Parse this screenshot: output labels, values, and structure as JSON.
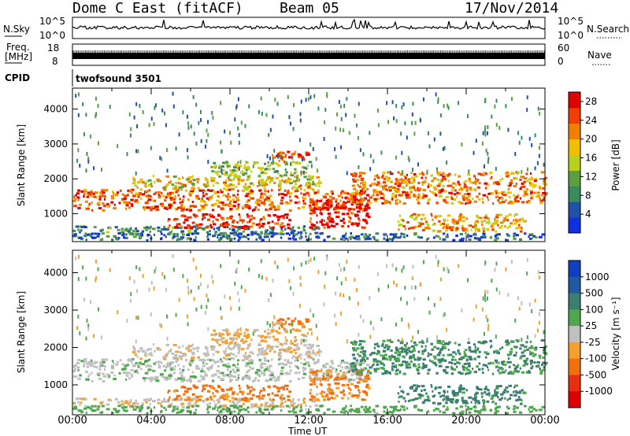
{
  "header": {
    "station": "Dome C East (fitACF)",
    "beam": "Beam 05",
    "date": "17/Nov/2014"
  },
  "strip_labels": {
    "nsky": "N.Sky",
    "nsky_ticks": [
      "10^5",
      "10^0"
    ],
    "nsearch": "N.Search",
    "freq_line1": "Freq.",
    "freq_line2": "[MHz]",
    "freq_ticks": [
      "18",
      "8"
    ],
    "nave": "Nave",
    "nave_ticks": [
      "60",
      "0"
    ],
    "cpid": "CPID",
    "cpid_name": "twofsound 3501"
  },
  "colors": {
    "power": [
      "#1030e0",
      "#2050a8",
      "#3a8a60",
      "#5aa040",
      "#b8d020",
      "#f0c000",
      "#f08000",
      "#f04000",
      "#e00000"
    ],
    "velocity": [
      "#1040c0",
      "#205aa0",
      "#3c7f70",
      "#4fa84f",
      "#c0c0c0",
      "#f4a030",
      "#f07010",
      "#e83010",
      "#e00000"
    ]
  },
  "chart_data": [
    {
      "type": "heatmap",
      "title": "",
      "xlabel": "Time UT",
      "ylabel": "Slant Range [km]",
      "xticks": [
        "00:00",
        "04:00",
        "08:00",
        "12:00",
        "16:00",
        "20:00",
        "00:00"
      ],
      "xlim_hours": [
        0,
        24
      ],
      "yticks": [
        1000,
        2000,
        3000,
        4000
      ],
      "ylim": [
        200,
        4600
      ],
      "colorbar": {
        "label": "Power [dB]",
        "ticks": [
          4,
          8,
          12,
          16,
          20,
          24,
          28
        ],
        "range": [
          0,
          30
        ]
      },
      "bands": [
        {
          "t0": 0.0,
          "t1": 12.5,
          "r0": 400,
          "r1": 650,
          "power": 8,
          "velocity": -20
        },
        {
          "t0": 4.8,
          "t1": 11.0,
          "r0": 600,
          "r1": 1000,
          "power": 26,
          "velocity": -150
        },
        {
          "t0": 0.0,
          "t1": 15.0,
          "r0": 1100,
          "r1": 1700,
          "power": 24,
          "velocity": 10
        },
        {
          "t0": 3.0,
          "t1": 12.5,
          "r0": 1700,
          "r1": 2100,
          "power": 18,
          "velocity": -10
        },
        {
          "t0": 7.0,
          "t1": 12.0,
          "r0": 2100,
          "r1": 2500,
          "power": 14,
          "velocity": -40
        },
        {
          "t0": 10.0,
          "t1": 12.0,
          "r0": 2500,
          "r1": 2800,
          "power": 26,
          "velocity": -150
        },
        {
          "t0": 12.0,
          "t1": 15.0,
          "r0": 600,
          "r1": 1400,
          "power": 28,
          "velocity": -120
        },
        {
          "t0": 14.0,
          "t1": 24.0,
          "r0": 1300,
          "r1": 2200,
          "power": 22,
          "velocity": 120
        },
        {
          "t0": 16.5,
          "t1": 23.0,
          "r0": 500,
          "r1": 1000,
          "power": 20,
          "velocity": 200
        },
        {
          "t0": 0.0,
          "t1": 24.0,
          "r0": 250,
          "r1": 450,
          "power": 6,
          "velocity": 60
        }
      ]
    },
    {
      "type": "heatmap",
      "title": "",
      "xlabel": "Time UT",
      "ylabel": "Slant Range [km]",
      "xticks": [
        "00:00",
        "04:00",
        "08:00",
        "12:00",
        "16:00",
        "20:00",
        "00:00"
      ],
      "xlim_hours": [
        0,
        24
      ],
      "yticks": [
        1000,
        2000,
        3000,
        4000
      ],
      "ylim": [
        200,
        4600
      ],
      "colorbar": {
        "label": "Velocity [m s⁻¹]",
        "ticks": [
          "1000",
          "500",
          "100",
          "25",
          "-25",
          "-100",
          "-500",
          "-1000"
        ],
        "range": [
          -1000,
          1000
        ]
      }
    }
  ]
}
